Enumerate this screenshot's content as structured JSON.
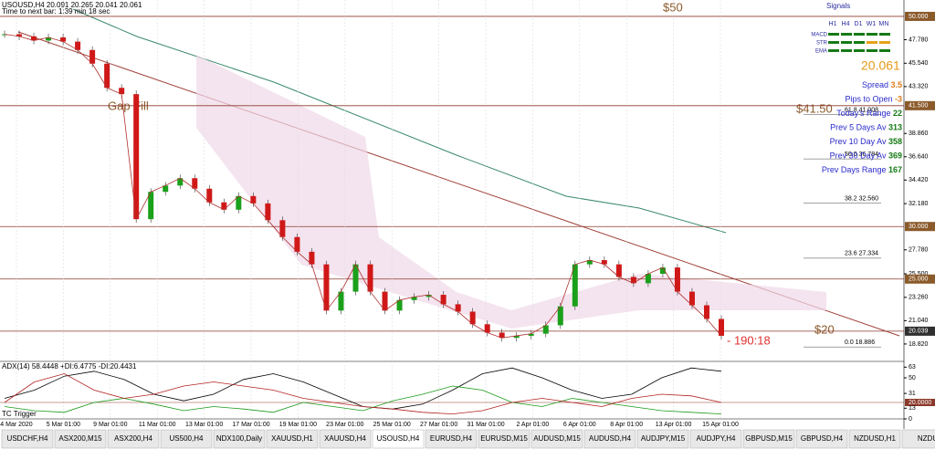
{
  "chart_data": {
    "type": "candles",
    "header": "USOUSD,H4  20.091 20.265 20.041 20.061",
    "subheader": "Time to next bar: 1:39 min 18 sec",
    "annotations": {
      "top_level": "$50",
      "gap_fill": "Gap Fill",
      "gap_level": "$41.50",
      "bottom_level": "$20",
      "countdown": "- 190:18"
    },
    "fib_labels": [
      "61.8  41.008",
      "50.0  36.784",
      "38.2  32.560",
      "23.6  27.334",
      "0.0  18.886"
    ],
    "fib_values": [
      41.008,
      36.784,
      32.56,
      27.334,
      18.886
    ],
    "ylim": [
      17.25,
      51.56
    ],
    "yticks": [
      {
        "value": 50,
        "label": "50.000",
        "highlight": true
      },
      {
        "value": 47.78,
        "label": "47.780"
      },
      {
        "value": 45.54,
        "label": "45.540"
      },
      {
        "value": 43.32,
        "label": "43.320"
      },
      {
        "value": 41.5,
        "label": "41.500",
        "highlight": true
      },
      {
        "value": 38.86,
        "label": "38.860"
      },
      {
        "value": 36.64,
        "label": "36.640"
      },
      {
        "value": 34.42,
        "label": "34.420"
      },
      {
        "value": 32.18,
        "label": "32.180"
      },
      {
        "value": 30,
        "label": "30.000",
        "highlight": true
      },
      {
        "value": 27.78,
        "label": "27.780"
      },
      {
        "value": 25.5,
        "label": "25.500"
      },
      {
        "value": 25,
        "label": "25.000",
        "highlight": true
      },
      {
        "value": 23.26,
        "label": "23.260"
      },
      {
        "value": 21.04,
        "label": "21.040"
      },
      {
        "value": 20.039,
        "label": "20.039",
        "highlight": true
      },
      {
        "value": 18.82,
        "label": "18.820"
      }
    ],
    "categories": [
      "4 Mar 2020",
      "5 Mar 01:00",
      "9 Mar 01:00",
      "11 Mar 01:00",
      "13 Mar 01:00",
      "17 Mar 01:00",
      "19 Mar 01:00",
      "23 Mar 01:00",
      "25 Mar 01:00",
      "27 Mar 01:00",
      "31 Mar 01:00",
      "2 Apr 01:00",
      "6 Apr 01:00",
      "8 Apr 01:00",
      "13 Apr 01:00",
      "15 Apr 01:00"
    ],
    "closes": [
      48.3,
      48.1,
      47.7,
      48.0,
      47.6,
      46.8,
      45.5,
      43.2,
      42.6,
      30.7,
      33.3,
      33.9,
      34.6,
      33.6,
      32.3,
      31.6,
      32.9,
      32.2,
      30.6,
      29.0,
      27.6,
      26.4,
      22.0,
      23.8,
      26.4,
      23.8,
      22.0,
      23.0,
      23.3,
      23.5,
      22.6,
      21.9,
      20.7,
      19.9,
      19.4,
      19.6,
      19.8,
      20.6,
      22.4,
      26.4,
      26.8,
      26.4,
      25.2,
      24.6,
      25.5,
      26.1,
      23.8,
      22.5,
      21.2,
      19.6
    ],
    "signals": {
      "title": "Signals",
      "columns": [
        "H1",
        "H4",
        "D1",
        "W1",
        "MN"
      ],
      "rows": [
        "MACD",
        "STR",
        "EMA"
      ]
    },
    "price": "20.061",
    "stats": [
      {
        "label": "Spread",
        "value": "3.5"
      },
      {
        "label": "Pips to Open",
        "value": "-3"
      },
      {
        "label": "Today's Range",
        "value": "22"
      },
      {
        "label": "Prev 5 Days Av",
        "value": "313"
      },
      {
        "label": "Prev 10 Day Av",
        "value": "358"
      },
      {
        "label": "Prev 30 Day Av",
        "value": "369"
      },
      {
        "label": "Prev Days Range",
        "value": "167"
      }
    ],
    "indicator": {
      "title": "ADX(14) 58.4448 +DI:6.4775 -DI:20.4431",
      "trigger": "TC Trigger",
      "ylim": [
        0,
        70
      ],
      "yticks": [
        {
          "value": 63,
          "label": "63"
        },
        {
          "value": 50,
          "label": "50"
        },
        {
          "value": 31,
          "label": "31"
        },
        {
          "value": 20,
          "label": "20.0000",
          "highlight": true
        },
        {
          "value": 13,
          "label": "13"
        },
        {
          "value": 0,
          "label": "0"
        }
      ],
      "series": [
        {
          "name": "ADX",
          "color": "#000000",
          "values": [
            25,
            35,
            52,
            58,
            48,
            30,
            22,
            30,
            48,
            55,
            45,
            30,
            15,
            12,
            18,
            35,
            55,
            62,
            50,
            35,
            25,
            30,
            50,
            62,
            58
          ]
        },
        {
          "name": "+DI",
          "color": "#1a9a1a",
          "values": [
            15,
            10,
            8,
            20,
            25,
            18,
            10,
            15,
            12,
            8,
            20,
            15,
            10,
            22,
            30,
            40,
            35,
            20,
            15,
            25,
            20,
            15,
            10,
            8,
            6
          ]
        },
        {
          "name": "-DI",
          "color": "#b22222",
          "values": [
            20,
            45,
            55,
            35,
            25,
            30,
            40,
            45,
            40,
            35,
            25,
            20,
            15,
            12,
            8,
            6,
            10,
            20,
            25,
            20,
            15,
            25,
            30,
            28,
            20
          ]
        }
      ]
    },
    "tabs": [
      "USDCHF,H4",
      "ASX200,M15",
      "ASX200,H4",
      "US500,H4",
      "NDX100,Daily",
      "XAUUSD,H1",
      "XAUUSD,H4",
      "USOUSD,H4",
      "EURUSD,H4",
      "EURUSD,M15",
      "AUDUSD,M15",
      "AUDUSD,H4",
      "AUDJPY,M15",
      "AUDJPY,H4",
      "GBPUSD,M15",
      "GBPUSD,H4",
      "NZDUSD,H1",
      "NZDU"
    ],
    "active_tab": 7
  }
}
